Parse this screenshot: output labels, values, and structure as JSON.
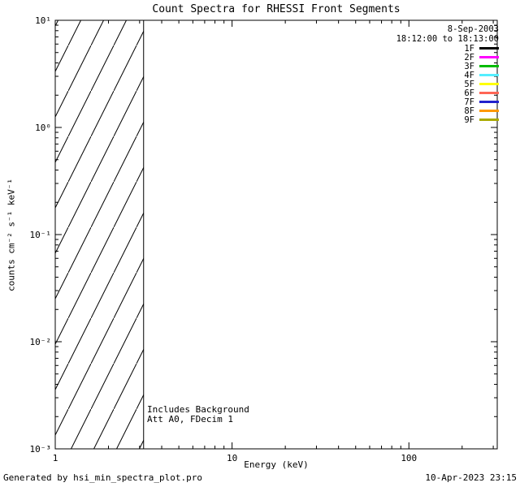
{
  "chart_data": {
    "type": "line",
    "title": "Count Spectra for RHESSI Front Segments",
    "xlabel": "Energy (keV)",
    "ylabel": "counts cm⁻² s⁻¹ keV⁻¹",
    "x_scale": "log",
    "y_scale": "log",
    "xlim": [
      1,
      316
    ],
    "ylim": [
      0.001,
      10
    ],
    "x_major_ticks": [
      1,
      10,
      100
    ],
    "x_tick_labels": [
      "1",
      "10",
      "100"
    ],
    "y_major_ticks": [
      10,
      1,
      0.1,
      0.01,
      0.001
    ],
    "y_tick_labels": [
      "10¹",
      "10⁰",
      "10⁻¹",
      "10⁻²",
      "10⁻³"
    ],
    "series": [],
    "hatched_region": {
      "x_start": 1,
      "x_end": 3.16,
      "style": "diagonal-hatch",
      "note": "no-data region below ~3 keV"
    },
    "grid": false,
    "legend": {
      "position": "top-right",
      "date": "8-Sep-2003",
      "time_range": "18:12:00 to 18:13:00",
      "entries": [
        {
          "label": "1F",
          "color": "#000000"
        },
        {
          "label": "2F",
          "color": "#ff00ff"
        },
        {
          "label": "3F",
          "color": "#00bb00"
        },
        {
          "label": "4F",
          "color": "#55eeff"
        },
        {
          "label": "5F",
          "color": "#ffff00"
        },
        {
          "label": "6F",
          "color": "#ff6655"
        },
        {
          "label": "7F",
          "color": "#2222cc"
        },
        {
          "label": "8F",
          "color": "#ff9900"
        },
        {
          "label": "9F",
          "color": "#aaaa00"
        }
      ]
    },
    "annotations": [
      "Includes Background",
      "Att A0, FDecim 1"
    ]
  },
  "footer": {
    "left": "Generated by hsi_min_spectra_plot.pro",
    "right": "10-Apr-2023 23:15"
  }
}
